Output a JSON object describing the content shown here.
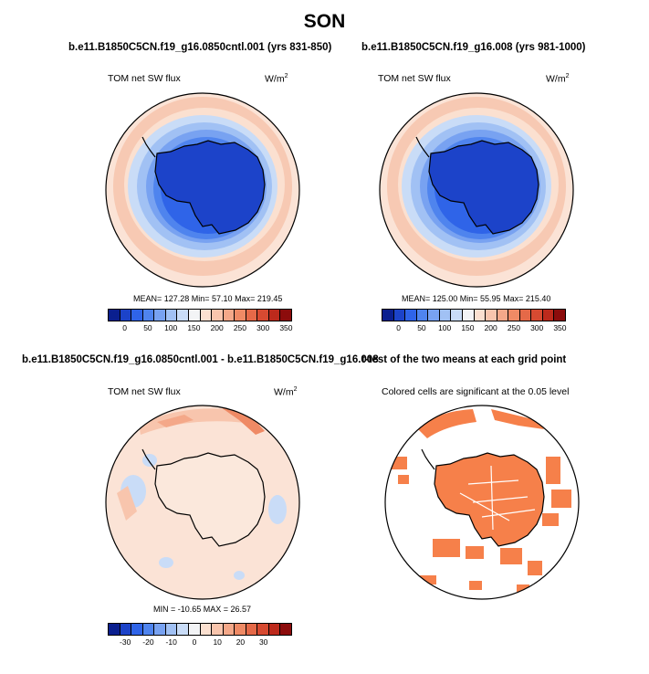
{
  "title": "SON",
  "panels": {
    "p1": {
      "title": "b.e11.B1850C5CN.f19_g16.0850cntl.001 (yrs 831-850)",
      "left_label": "TOM net SW flux",
      "unit": "W/m",
      "unit_sup": "2",
      "stats": "MEAN= 127.28  Min=  57.10  Max= 219.45"
    },
    "p2": {
      "title": "b.e11.B1850C5CN.f19_g16.008 (yrs 981-1000)",
      "left_label": "TOM net SW flux",
      "unit": "W/m",
      "unit_sup": "2",
      "stats": "MEAN= 125.00  Min=  55.95  Max= 215.40"
    },
    "p3": {
      "title": "b.e11.B1850C5CN.f19_g16.0850cntl.001 - b.e11.B1850C5CN.f19_g16.008",
      "left_label": "TOM net SW flux",
      "unit": "W/m",
      "unit_sup": "2",
      "stats": "MIN = -10.65 MAX =  26.57"
    },
    "p4": {
      "title": "t-test of the two means at each grid point",
      "left_label": "Colored cells are significant at the 0.05 level"
    }
  },
  "colorbars": {
    "abs": {
      "ticks": [
        "0",
        "50",
        "100",
        "150",
        "200",
        "250",
        "300",
        "350"
      ],
      "colors": [
        "#0a1f8f",
        "#1c43c9",
        "#2f64e8",
        "#4f84ee",
        "#78a2f1",
        "#a1c1f4",
        "#c9dcf7",
        "#f3f4f6",
        "#fbe0d0",
        "#f8c5ad",
        "#f4a889",
        "#ef8a65",
        "#e56948",
        "#d74a31",
        "#bd2a1c",
        "#8c0c0c"
      ]
    },
    "diff": {
      "ticks": [
        "-30",
        "-20",
        "-10",
        "0",
        "10",
        "20",
        "30"
      ],
      "colors": [
        "#0a1f8f",
        "#1c43c9",
        "#2f64e8",
        "#4f84ee",
        "#78a2f1",
        "#a1c1f4",
        "#c9dcf7",
        "#f3f4f6",
        "#fbe0d0",
        "#f8c5ad",
        "#f4a889",
        "#ef8a65",
        "#e56948",
        "#d74a31",
        "#bd2a1c",
        "#8c0c0c"
      ]
    }
  },
  "colors": {
    "significant": "#f6804a",
    "land_outline": "#000000"
  }
}
